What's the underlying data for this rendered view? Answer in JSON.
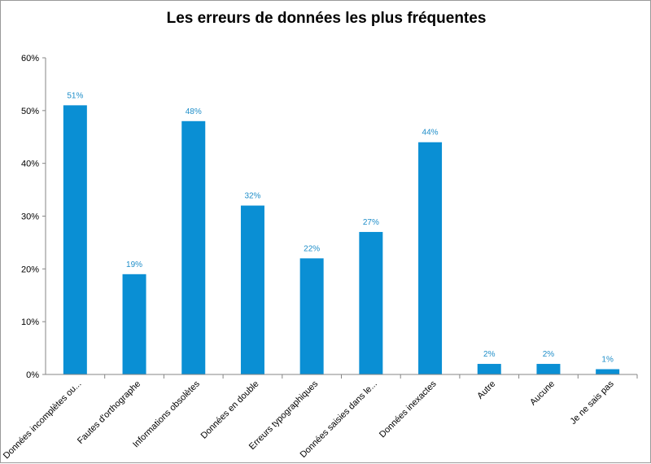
{
  "chart_data": {
    "type": "bar",
    "title": "Les erreurs de données les plus fréquentes",
    "categories": [
      "Données incomplètes ou...",
      "Fautes d'orthographe",
      "Informations obsolètes",
      "Données en double",
      "Erreurs typographiques",
      "Données saisies dans le...",
      "Données inexactes",
      "Autre",
      "Aucune",
      "Je ne sais pas"
    ],
    "values": [
      51,
      19,
      48,
      32,
      22,
      27,
      44,
      2,
      2,
      1
    ],
    "data_labels": [
      "51%",
      "19%",
      "48%",
      "32%",
      "22%",
      "27%",
      "44%",
      "2%",
      "2%",
      "1%"
    ],
    "y_ticks": [
      0,
      10,
      20,
      30,
      40,
      50,
      60
    ],
    "y_tick_labels": [
      "0%",
      "10%",
      "20%",
      "30%",
      "40%",
      "50%",
      "60%"
    ],
    "ylim": [
      0,
      60
    ],
    "grid": false,
    "legend": "none",
    "bar_color": "#0a8fd4",
    "label_color": "#1f8ec9"
  }
}
